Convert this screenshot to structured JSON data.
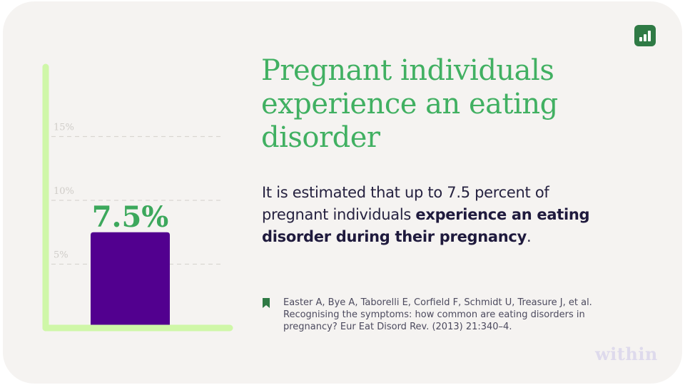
{
  "headline": "Pregnant individuals experience an eating disorder",
  "body": {
    "prefix": "It is estimated that up to 7.5 percent of pregnant individuals ",
    "emphasis": "experience an eating disorder during their pregnancy",
    "suffix": "."
  },
  "citation": "Easter A, Bye A, Taborelli E, Corfield F, Schmidt U, Treasure J, et al. Recognising the symptoms: how common are eating disorders in pregnancy? Eur Eat Disord Rev. (2013) 21:340–4.",
  "logo_text": "within",
  "icons": {
    "brand": "bar-chart-icon",
    "citation": "bookmark-icon"
  },
  "colors": {
    "accent_green": "#41b062",
    "bar_purple": "#52008f",
    "axis_green": "#cff7a8",
    "text_dark": "#262240",
    "brand_icon_bg": "#2f7a45"
  },
  "chart_data": {
    "type": "bar",
    "categories": [
      ""
    ],
    "values": [
      7.5
    ],
    "value_labels": [
      "7.5%"
    ],
    "ylim": [
      0,
      20
    ],
    "yticks": [
      5,
      10,
      15
    ],
    "ytick_labels": [
      "5%",
      "10%",
      "15%"
    ],
    "grid": true,
    "legend": "none"
  }
}
